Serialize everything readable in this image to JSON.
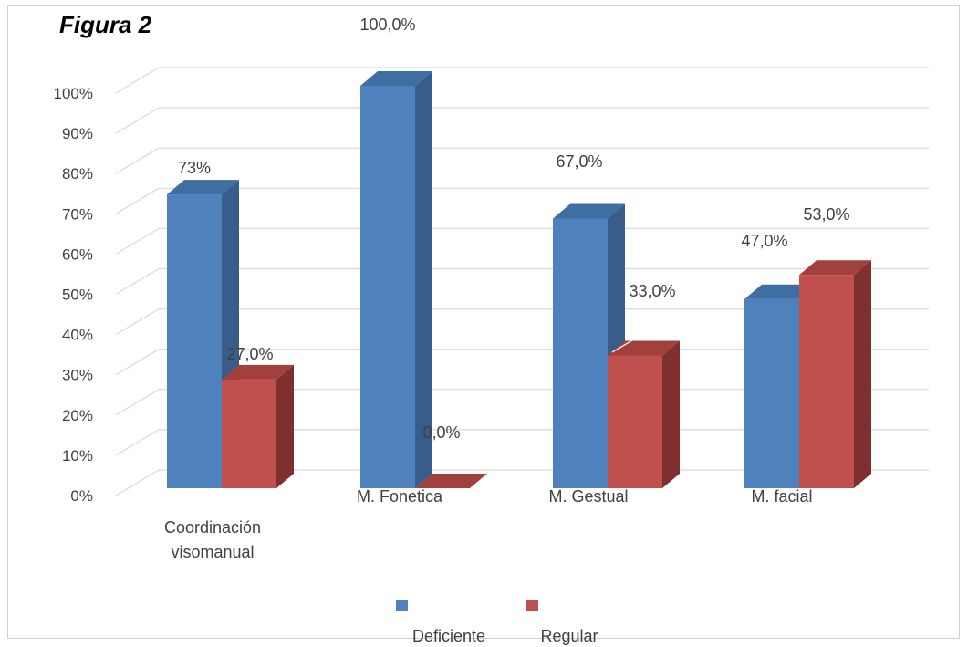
{
  "title": "Figura 2",
  "chart_data": {
    "type": "bar",
    "categories": [
      "Coordinación visomanual",
      "M. Fonetica",
      "M. Gestual",
      "M. facial"
    ],
    "series": [
      {
        "name": "Deficiente",
        "values": [
          73,
          100,
          67,
          47
        ],
        "labels": [
          "73%",
          "100,0%",
          "67,0%",
          "47,0%"
        ]
      },
      {
        "name": "Regular",
        "values": [
          27,
          0,
          33,
          53
        ],
        "labels": [
          "27,0%",
          "0,0%",
          "33,0%",
          "53,0%"
        ]
      }
    ],
    "y_ticks": [
      "0%",
      "10%",
      "20%",
      "30%",
      "40%",
      "50%",
      "60%",
      "70%",
      "80%",
      "90%",
      "100%"
    ],
    "ylim": [
      0,
      100
    ],
    "grid": true,
    "legend_position": "bottom",
    "three_d": true,
    "colors": {
      "Deficiente": {
        "front": "#4f81bd",
        "side": "#385d8a",
        "top": "#3f6ea3"
      },
      "Regular": {
        "front": "#c0504d",
        "side": "#7f302e",
        "top": "#a2403d"
      },
      "grid": "#d9d9d9",
      "text": "#404040"
    }
  }
}
